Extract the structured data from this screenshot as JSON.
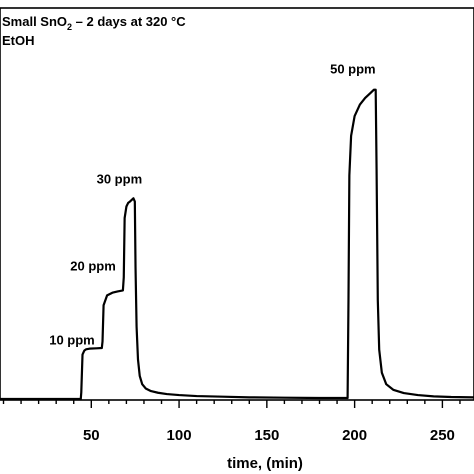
{
  "chart_data": {
    "type": "line",
    "title": "Small SnO₂ – 2 days at 320 °C",
    "title_main": "Small SnO",
    "title_sub": "2",
    "title_rest": " – 2 days at 320 °C",
    "subtitle": "EtOH",
    "xlabel": "time, (min)",
    "ylabel": "",
    "xlim": [
      -2,
      268
    ],
    "ylim": [
      0,
      1
    ],
    "x_ticks": [
      50,
      100,
      150,
      200,
      250
    ],
    "x_tick_labels": [
      "50",
      "100",
      "150",
      "200",
      "250"
    ],
    "x_minor_step": 10,
    "grid": false,
    "series": [
      {
        "color": "#000000",
        "x": [
          -2,
          44,
          44.3,
          45,
          46,
          47,
          49,
          53,
          56,
          56.4,
          57,
          59,
          62,
          65,
          68,
          68.5,
          69,
          70,
          71,
          72,
          73,
          74,
          74.8,
          75.2,
          75.8,
          76.6,
          77.6,
          79,
          81,
          84,
          88,
          93,
          100,
          110,
          125,
          140,
          160,
          180,
          196,
          196.5,
          197,
          198,
          200,
          203,
          206,
          209,
          211,
          212,
          212.5,
          213.2,
          214,
          215.5,
          218,
          222,
          228,
          236,
          245,
          255,
          268
        ],
        "y": [
          0,
          0,
          0.02,
          0.135,
          0.147,
          0.151,
          0.153,
          0.154,
          0.155,
          0.175,
          0.285,
          0.315,
          0.323,
          0.327,
          0.33,
          0.37,
          0.55,
          0.585,
          0.596,
          0.6,
          0.605,
          0.61,
          0.6,
          0.4,
          0.22,
          0.12,
          0.07,
          0.045,
          0.032,
          0.024,
          0.019,
          0.015,
          0.012,
          0.009,
          0.007,
          0.005,
          0.004,
          0.003,
          0.003,
          0.3,
          0.68,
          0.8,
          0.86,
          0.895,
          0.915,
          0.93,
          0.94,
          0.94,
          0.7,
          0.3,
          0.15,
          0.08,
          0.045,
          0.028,
          0.018,
          0.012,
          0.008,
          0.006,
          0.005
        ]
      }
    ],
    "annotations": [
      {
        "text": "10 ppm",
        "x": 39,
        "y": 0.165
      },
      {
        "text": "20 ppm",
        "x": 51,
        "y": 0.39
      },
      {
        "text": "30 ppm",
        "x": 66,
        "y": 0.655
      },
      {
        "text": "50 ppm",
        "x": 199,
        "y": 0.99
      }
    ]
  }
}
